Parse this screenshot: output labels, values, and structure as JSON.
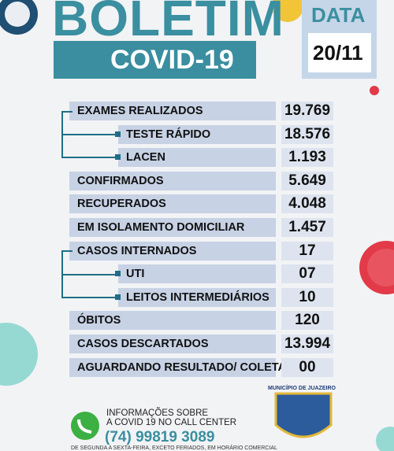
{
  "header": {
    "title": "BOLETIM",
    "subtitle": "COVID-19",
    "date_label": "DATA",
    "date": "20/11"
  },
  "table": {
    "rows": [
      [
        "EXAMES REALIZADOS",
        "19.769"
      ],
      [
        "TESTE RÁPIDO",
        "18.576"
      ],
      [
        "LACEN",
        "1.193"
      ],
      [
        "CONFIRMADOS",
        "5.649"
      ],
      [
        "RECUPERADOS",
        "4.048"
      ],
      [
        "EM ISOLAMENTO DOMICILIAR",
        "1.457"
      ],
      [
        "CASOS INTERNADOS",
        "17"
      ],
      [
        "UTI",
        "07"
      ],
      [
        "LEITOS INTERMEDIÁRIOS",
        "10"
      ],
      [
        "ÓBITOS",
        "120"
      ],
      [
        "CASOS DESCARTADOS",
        "13.994"
      ],
      [
        "AGUARDANDO RESULTADO/ COLETA",
        "00"
      ]
    ]
  },
  "footer": {
    "info_line1": "INFORMAÇÕES SOBRE",
    "info_line2": "A COVID 19 NO CALL CENTER",
    "phone": "(74) 99819 3089",
    "hours": "DE SEGUNDA A SEXTA-FEIRA, EXCETO FERIADOS, EM HORÁRIO COMERCIAL",
    "crest": "MUNICÍPIO DE JUAZEIRO"
  }
}
